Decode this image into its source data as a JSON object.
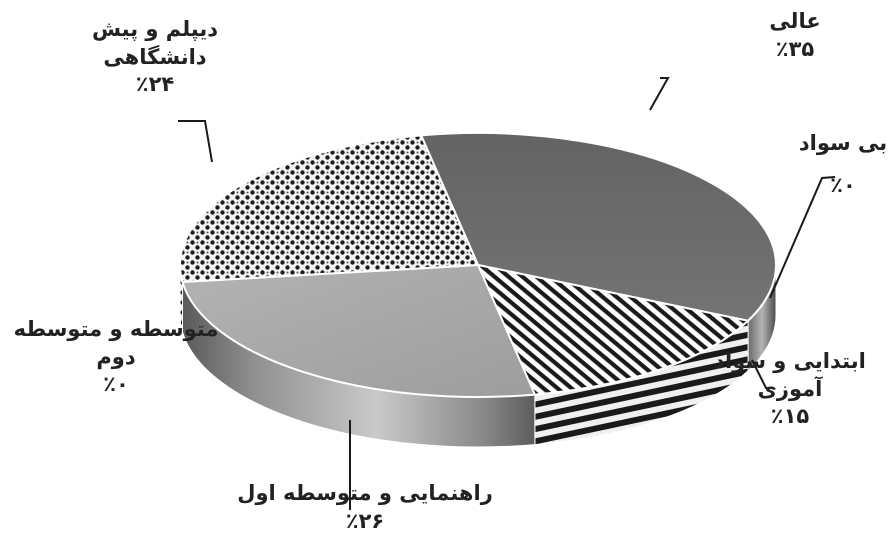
{
  "chart_data": {
    "type": "pie",
    "title": "",
    "three_d": true,
    "legend": "none",
    "slices": [
      {
        "label": "عالی",
        "value": 35,
        "value_label": "٪۳۵",
        "fill": "solid",
        "color": "#6e6e6e"
      },
      {
        "label": "بی سواد",
        "value": 0,
        "value_label": "٪۰",
        "fill": "none",
        "color": "#888888"
      },
      {
        "label": "ابتدایی و سواد آموزی",
        "value": 15,
        "value_label": "٪۱۵",
        "fill": "diagonal-stripes",
        "color": "#1a1a1a"
      },
      {
        "label": "راهنمایی و متوسطه اول",
        "value": 26,
        "value_label": "٪۲۶",
        "fill": "solid",
        "color": "#a9a9a9"
      },
      {
        "label": "متوسطه و متوسطه دوم",
        "value": 0,
        "value_label": "٪۰",
        "fill": "none",
        "color": "#888888"
      },
      {
        "label": "دیپلم و پیش دانشگاهی",
        "value": 24,
        "value_label": "٪۲۴",
        "fill": "dots",
        "color": "#1c1c1c"
      }
    ]
  }
}
